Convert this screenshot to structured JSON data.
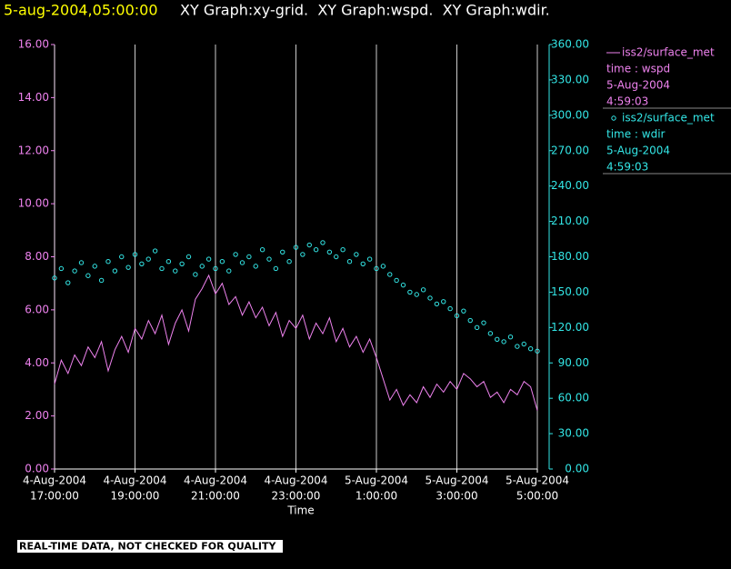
{
  "chart_data": {
    "type": "line",
    "timestamp": "5-aug-2004,05:00:00",
    "title": "XY Graph:xy-grid.  XY Graph:wspd.  XY Graph:wdir.",
    "x_label": "Time",
    "note": "REAL-TIME DATA, NOT CHECKED FOR QUALITY",
    "x": [
      "2004-08-04T17:00",
      "2004-08-04T17:10",
      "2004-08-04T17:20",
      "2004-08-04T17:30",
      "2004-08-04T17:40",
      "2004-08-04T17:50",
      "2004-08-04T18:00",
      "2004-08-04T18:10",
      "2004-08-04T18:20",
      "2004-08-04T18:30",
      "2004-08-04T18:40",
      "2004-08-04T18:50",
      "2004-08-04T19:00",
      "2004-08-04T19:10",
      "2004-08-04T19:20",
      "2004-08-04T19:30",
      "2004-08-04T19:40",
      "2004-08-04T19:50",
      "2004-08-04T20:00",
      "2004-08-04T20:10",
      "2004-08-04T20:20",
      "2004-08-04T20:30",
      "2004-08-04T20:40",
      "2004-08-04T20:50",
      "2004-08-04T21:00",
      "2004-08-04T21:10",
      "2004-08-04T21:20",
      "2004-08-04T21:30",
      "2004-08-04T21:40",
      "2004-08-04T21:50",
      "2004-08-04T22:00",
      "2004-08-04T22:10",
      "2004-08-04T22:20",
      "2004-08-04T22:30",
      "2004-08-04T22:40",
      "2004-08-04T22:50",
      "2004-08-04T23:00",
      "2004-08-04T23:10",
      "2004-08-04T23:20",
      "2004-08-04T23:30",
      "2004-08-04T23:40",
      "2004-08-04T23:50",
      "2004-08-05T00:00",
      "2004-08-05T00:10",
      "2004-08-05T00:20",
      "2004-08-05T00:30",
      "2004-08-05T00:40",
      "2004-08-05T00:50",
      "2004-08-05T01:00",
      "2004-08-05T01:10",
      "2004-08-05T01:20",
      "2004-08-05T01:30",
      "2004-08-05T01:40",
      "2004-08-05T01:50",
      "2004-08-05T02:00",
      "2004-08-05T02:10",
      "2004-08-05T02:20",
      "2004-08-05T02:30",
      "2004-08-05T02:40",
      "2004-08-05T02:50",
      "2004-08-05T03:00",
      "2004-08-05T03:10",
      "2004-08-05T03:20",
      "2004-08-05T03:30",
      "2004-08-05T03:40",
      "2004-08-05T03:50",
      "2004-08-05T04:00",
      "2004-08-05T04:10",
      "2004-08-05T04:20",
      "2004-08-05T04:30",
      "2004-08-05T04:40",
      "2004-08-05T04:50",
      "2004-08-05T05:00"
    ],
    "xlim": [
      "2004-08-04T17:00",
      "2004-08-05T05:00"
    ],
    "xticks": [
      {
        "value": "2004-08-04T17:00",
        "label": [
          "4-Aug-2004",
          "17:00:00"
        ]
      },
      {
        "value": "2004-08-04T19:00",
        "label": [
          "4-Aug-2004",
          "19:00:00"
        ]
      },
      {
        "value": "2004-08-04T21:00",
        "label": [
          "4-Aug-2004",
          "21:00:00"
        ]
      },
      {
        "value": "2004-08-04T23:00",
        "label": [
          "4-Aug-2004",
          "23:00:00"
        ]
      },
      {
        "value": "2004-08-05T01:00",
        "label": [
          "5-Aug-2004",
          "1:00:00"
        ]
      },
      {
        "value": "2004-08-05T03:00",
        "label": [
          "5-Aug-2004",
          "3:00:00"
        ]
      },
      {
        "value": "2004-08-05T05:00",
        "label": [
          "5-Aug-2004",
          "5:00:00"
        ]
      }
    ],
    "grid": true,
    "ylim": [
      0,
      16
    ],
    "yticks": [
      {
        "value": 0,
        "label": "0.00"
      },
      {
        "value": 2,
        "label": "2.00"
      },
      {
        "value": 4,
        "label": "4.00"
      },
      {
        "value": 6,
        "label": "6.00"
      },
      {
        "value": 8,
        "label": "8.00"
      },
      {
        "value": 10,
        "label": "10.00"
      },
      {
        "value": 12,
        "label": "12.00"
      },
      {
        "value": 14,
        "label": "14.00"
      },
      {
        "value": 16,
        "label": "16.00"
      }
    ],
    "y2lim": [
      0,
      360
    ],
    "y2ticks": [
      {
        "value": 0,
        "label": "0.00"
      },
      {
        "value": 30,
        "label": "30.00"
      },
      {
        "value": 60,
        "label": "60.00"
      },
      {
        "value": 90,
        "label": "90.00"
      },
      {
        "value": 120,
        "label": "120.00"
      },
      {
        "value": 150,
        "label": "150.00"
      },
      {
        "value": 180,
        "label": "180.00"
      },
      {
        "value": 210,
        "label": "210.00"
      },
      {
        "value": 240,
        "label": "240.00"
      },
      {
        "value": 270,
        "label": "270.00"
      },
      {
        "value": 300,
        "label": "300.00"
      },
      {
        "value": 330,
        "label": "330.00"
      },
      {
        "value": 360,
        "label": "360.00"
      }
    ],
    "series": [
      {
        "name": "iss2/surface_met",
        "legend_lines": [
          "time : wspd",
          "5-Aug-2004",
          "4:59:03"
        ],
        "color": "#ee82ee",
        "style": "line",
        "axis": "y",
        "values": [
          3.2,
          4.1,
          3.6,
          4.3,
          3.9,
          4.6,
          4.2,
          4.8,
          3.7,
          4.5,
          5.0,
          4.4,
          5.3,
          4.9,
          5.6,
          5.1,
          5.8,
          4.7,
          5.5,
          6.0,
          5.2,
          6.4,
          6.8,
          7.3,
          6.6,
          7.0,
          6.2,
          6.5,
          5.8,
          6.3,
          5.7,
          6.1,
          5.4,
          5.9,
          5.0,
          5.6,
          5.3,
          5.8,
          4.9,
          5.5,
          5.1,
          5.7,
          4.8,
          5.3,
          4.6,
          5.0,
          4.4,
          4.9,
          4.2,
          3.4,
          2.6,
          3.0,
          2.4,
          2.8,
          2.5,
          3.1,
          2.7,
          3.2,
          2.9,
          3.3,
          3.0,
          3.6,
          3.4,
          3.1,
          3.3,
          2.7,
          2.9,
          2.5,
          3.0,
          2.8,
          3.3,
          3.1,
          2.2
        ]
      },
      {
        "name": "iss2/surface_met",
        "legend_lines": [
          "time : wdir",
          "5-Aug-2004",
          "4:59:03"
        ],
        "color": "#33e6e6",
        "style": "circles",
        "axis": "y2",
        "values": [
          162,
          170,
          158,
          168,
          175,
          164,
          172,
          160,
          176,
          168,
          180,
          171,
          182,
          174,
          178,
          185,
          170,
          176,
          168,
          174,
          180,
          165,
          172,
          178,
          170,
          176,
          168,
          182,
          175,
          180,
          172,
          186,
          178,
          170,
          184,
          176,
          188,
          182,
          190,
          186,
          192,
          184,
          180,
          186,
          176,
          182,
          174,
          178,
          170,
          172,
          165,
          160,
          156,
          150,
          148,
          152,
          145,
          140,
          142,
          136,
          130,
          134,
          126,
          120,
          124,
          115,
          110,
          108,
          112,
          104,
          106,
          102,
          100
        ]
      }
    ]
  }
}
